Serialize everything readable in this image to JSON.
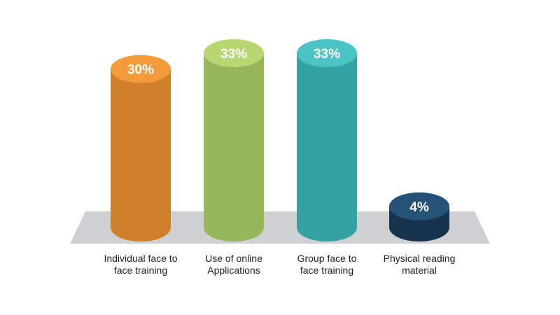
{
  "chart_data": {
    "type": "bar",
    "style": "3d-cylinder",
    "categories": [
      {
        "line1": "Individual face to",
        "line2": "face training"
      },
      {
        "line1": "Use of online",
        "line2": "Applications"
      },
      {
        "line1": "Group face to",
        "line2": "face training"
      },
      {
        "line1": "Physical reading",
        "line2": "material"
      }
    ],
    "values": [
      30,
      33,
      33,
      4
    ],
    "value_labels": [
      "30%",
      "33%",
      "33%",
      "4%"
    ],
    "ylim": [
      0,
      33
    ],
    "colors": [
      {
        "body": "#d07f2a",
        "top": "#f39a3a"
      },
      {
        "body": "#96b75a",
        "top": "#b8d672"
      },
      {
        "body": "#33a3a4",
        "top": "#4cc3c5"
      },
      {
        "body": "#17344f",
        "top": "#255377"
      }
    ],
    "floor_color": "#cfd0d2",
    "grid": false,
    "legend": "none"
  }
}
